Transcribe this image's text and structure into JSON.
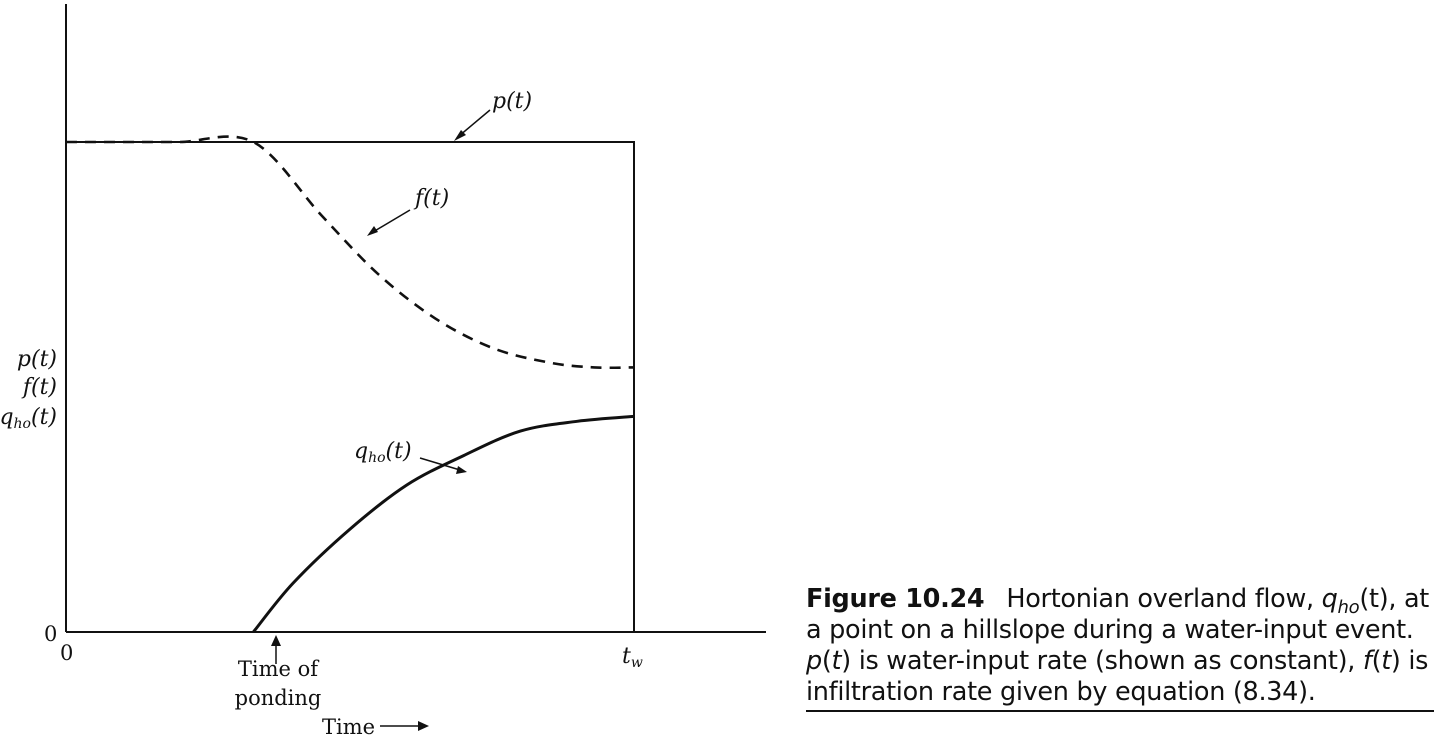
{
  "chart_data": {
    "type": "line",
    "x_axis": {
      "origin_label": "0",
      "tick_labels": [
        "Time of",
        "ponding",
        "t",
        "w"
      ],
      "label": "Time",
      "range": [
        0,
        1.12
      ]
    },
    "y_axis": {
      "origin_label": "0",
      "labels": [
        "p(t)",
        "f(t)",
        "q",
        "ho",
        "(t)"
      ],
      "range": [
        0,
        1.15
      ]
    },
    "t_ponding": 0.33,
    "t_w": 1.0,
    "series": [
      {
        "name": "p(t)",
        "style": "solid",
        "x": [
          0,
          1.0,
          1.0
        ],
        "y": [
          1.0,
          1.0,
          0
        ]
      },
      {
        "name": "f(t)",
        "style": "dashed",
        "x": [
          0,
          0.1,
          0.2,
          0.33,
          0.45,
          0.55,
          0.65,
          0.75,
          0.85,
          0.93,
          1.0
        ],
        "y": [
          1.0,
          1.0,
          1.0,
          1.0,
          0.85,
          0.73,
          0.64,
          0.58,
          0.55,
          0.54,
          0.54
        ]
      },
      {
        "name": "q_ho(t)",
        "style": "solid",
        "x": [
          0.33,
          0.4,
          0.5,
          0.6,
          0.7,
          0.8,
          0.9,
          1.0
        ],
        "y": [
          0,
          0.1,
          0.21,
          0.3,
          0.36,
          0.41,
          0.43,
          0.44
        ]
      }
    ],
    "annotations": {
      "p_label": [
        "p",
        "(t)"
      ],
      "f_label": [
        "f",
        "(t)"
      ],
      "q_label": [
        "q",
        "ho",
        "(t)"
      ]
    }
  },
  "caption": {
    "figure_label": "Figure 10.24",
    "line1_text": "Hortonian overland flow, ",
    "q_symbol": "q",
    "q_sub": "ho",
    "q_arg": "(t)",
    "line1_end": ", at a point on a hillslope during a water-input event. ",
    "p_symbol": "p",
    "p_arg_t": "t",
    "p_text": " is water-input rate (shown as constant), ",
    "f_symbol": "f",
    "f_arg_t": "t",
    "f_text": " is infiltration rate given by equation (8.34)."
  }
}
